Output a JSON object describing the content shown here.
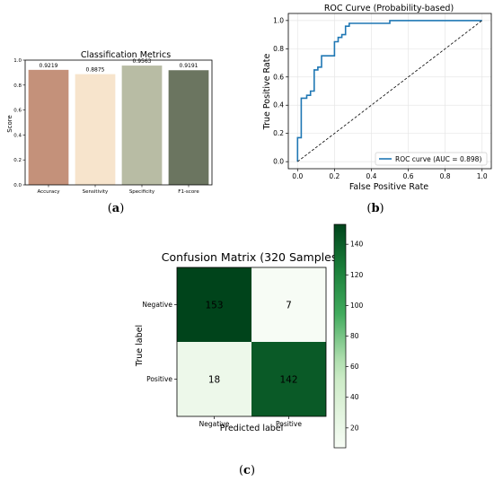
{
  "panel_captions": {
    "a": {
      "open": "(",
      "letter": "a",
      "close": ")"
    },
    "b": {
      "open": "(",
      "letter": "b",
      "close": ")"
    },
    "c": {
      "open": "(",
      "letter": "c",
      "close": ")"
    }
  },
  "chart_data": [
    {
      "type": "bar",
      "title": "Classification Metrics",
      "xlabel": "",
      "ylabel": "Score",
      "ylim": [
        0,
        1.0
      ],
      "yticks": [
        "0.0",
        "0.2",
        "0.4",
        "0.6",
        "0.8",
        "1.0"
      ],
      "categories": [
        "Accuracy",
        "Sensitivity",
        "Specificity",
        "F1-score"
      ],
      "values": [
        0.9219,
        0.8875,
        0.9563,
        0.9191
      ],
      "value_labels": [
        "0.9219",
        "0.8875",
        "0.9563",
        "0.9191"
      ],
      "colors": [
        "#c4917a",
        "#f7e4cc",
        "#b8bca4",
        "#6b7560"
      ],
      "grid": false
    },
    {
      "type": "line",
      "title": "ROC Curve (Probability-based)",
      "xlabel": "False Positive Rate",
      "ylabel": "True Positive Rate",
      "xlim": [
        0,
        1.0
      ],
      "ylim": [
        0,
        1.0
      ],
      "xticks": [
        "0.0",
        "0.2",
        "0.4",
        "0.6",
        "0.8",
        "1.0"
      ],
      "yticks": [
        "0.0",
        "0.2",
        "0.4",
        "0.6",
        "0.8",
        "1.0"
      ],
      "grid": true,
      "legend_position": "bottom-right",
      "series": [
        {
          "name": "ROC curve (AUC = 0.898)",
          "color": "#1f77b4",
          "style": "solid",
          "x": [
            0,
            0,
            0.02,
            0.02,
            0.05,
            0.05,
            0.07,
            0.07,
            0.09,
            0.09,
            0.11,
            0.11,
            0.13,
            0.13,
            0.15,
            0.15,
            0.2,
            0.2,
            0.22,
            0.22,
            0.24,
            0.24,
            0.26,
            0.26,
            0.28,
            0.28,
            0.5,
            0.5,
            1.0
          ],
          "y": [
            0,
            0.17,
            0.17,
            0.45,
            0.45,
            0.47,
            0.47,
            0.5,
            0.5,
            0.65,
            0.65,
            0.67,
            0.67,
            0.75,
            0.75,
            0.75,
            0.75,
            0.85,
            0.85,
            0.88,
            0.88,
            0.9,
            0.9,
            0.96,
            0.96,
            0.98,
            0.98,
            1.0,
            1.0
          ]
        },
        {
          "name": "",
          "color": "#000000",
          "style": "dashed",
          "x": [
            0,
            1.0
          ],
          "y": [
            0,
            1.0
          ]
        }
      ]
    },
    {
      "type": "heatmap",
      "title": "Confusion Matrix (320 Samples)",
      "xlabel": "Predicted label",
      "ylabel": "True label",
      "x_categories": [
        "Negative",
        "Positive"
      ],
      "y_categories": [
        "Negative",
        "Positive"
      ],
      "values": [
        [
          153,
          7
        ],
        [
          18,
          142
        ]
      ],
      "colorbar": {
        "min": 7,
        "max": 153,
        "ticks": [
          20,
          40,
          60,
          80,
          100,
          120,
          140
        ],
        "low_color": "#f7fcf5",
        "high_color": "#00441b"
      }
    }
  ]
}
